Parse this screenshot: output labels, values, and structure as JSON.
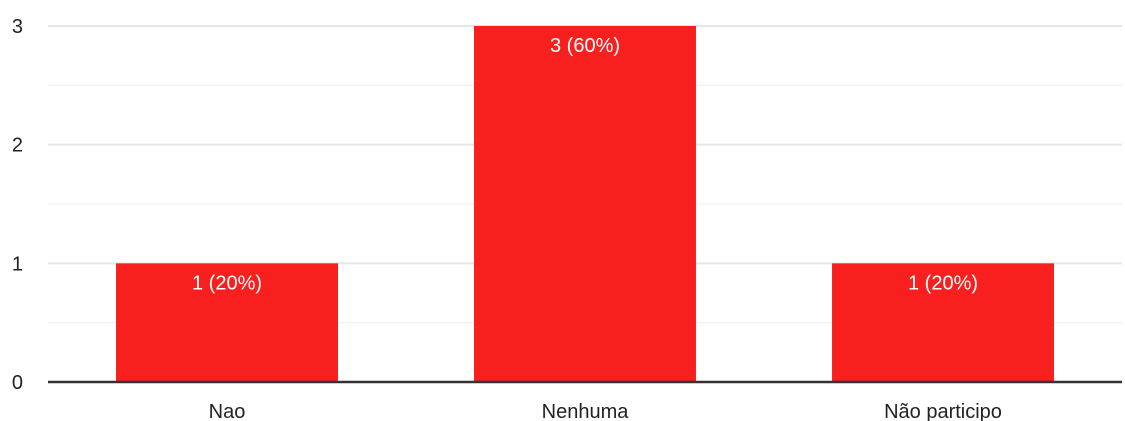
{
  "chart_data": {
    "type": "bar",
    "categories": [
      "Nao",
      "Nenhuma",
      "Não participo"
    ],
    "values": [
      1,
      3,
      1
    ],
    "data_labels": [
      "1 (20%)",
      "3 (60%)",
      "1 (20%)"
    ],
    "title": "",
    "xlabel": "",
    "ylabel": "",
    "ylim": [
      0,
      3
    ],
    "yticks": [
      "0",
      "1",
      "2",
      "3"
    ],
    "grid": true,
    "legend": "none",
    "colors": {
      "bar": "#f8201f",
      "grid_major": "#e6e6e6",
      "grid_minor": "#f3f3f3",
      "axis": "#333333"
    }
  }
}
